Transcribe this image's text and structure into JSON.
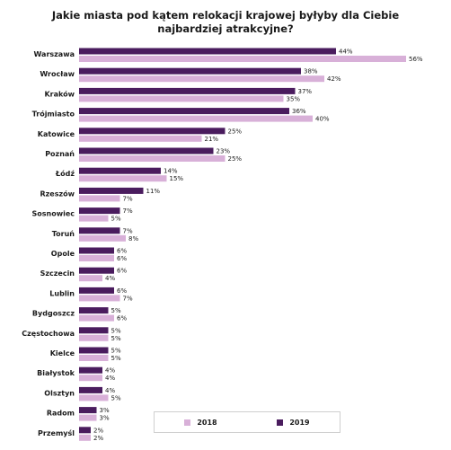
{
  "chart_data": {
    "type": "bar",
    "orientation": "horizontal",
    "title_lines": [
      "Jakie miasta pod kątem relokacji krajowej byłyby dla Ciebie",
      "najbardziej atrakcyjne?"
    ],
    "categories": [
      "Warszawa",
      "Wrocław",
      "Kraków",
      "Trójmiasto",
      "Katowice",
      "Poznań",
      "Łódź",
      "Rzeszów",
      "Sosnowiec",
      "Toruń",
      "Opole",
      "Szczecin",
      "Lublin",
      "Bydgoszcz",
      "Częstochowa",
      "Kielce",
      "Białystok",
      "Olsztyn",
      "Radom",
      "Przemyśl"
    ],
    "series": [
      {
        "name": "2019",
        "color": "#4a1c5e",
        "values": [
          44,
          38,
          37,
          36,
          25,
          23,
          14,
          11,
          7,
          7,
          6,
          6,
          6,
          5,
          5,
          5,
          4,
          4,
          3,
          2
        ]
      },
      {
        "name": "2018",
        "color": "#d8b0d8",
        "values": [
          56,
          42,
          35,
          40,
          21,
          25,
          15,
          7,
          5,
          8,
          6,
          4,
          7,
          6,
          5,
          5,
          4,
          5,
          3,
          2
        ]
      }
    ],
    "value_suffix": "%",
    "legend_order": [
      "2018",
      "2019"
    ],
    "legend_position": "bottom",
    "grid": false,
    "xlim": [
      0,
      56
    ]
  }
}
